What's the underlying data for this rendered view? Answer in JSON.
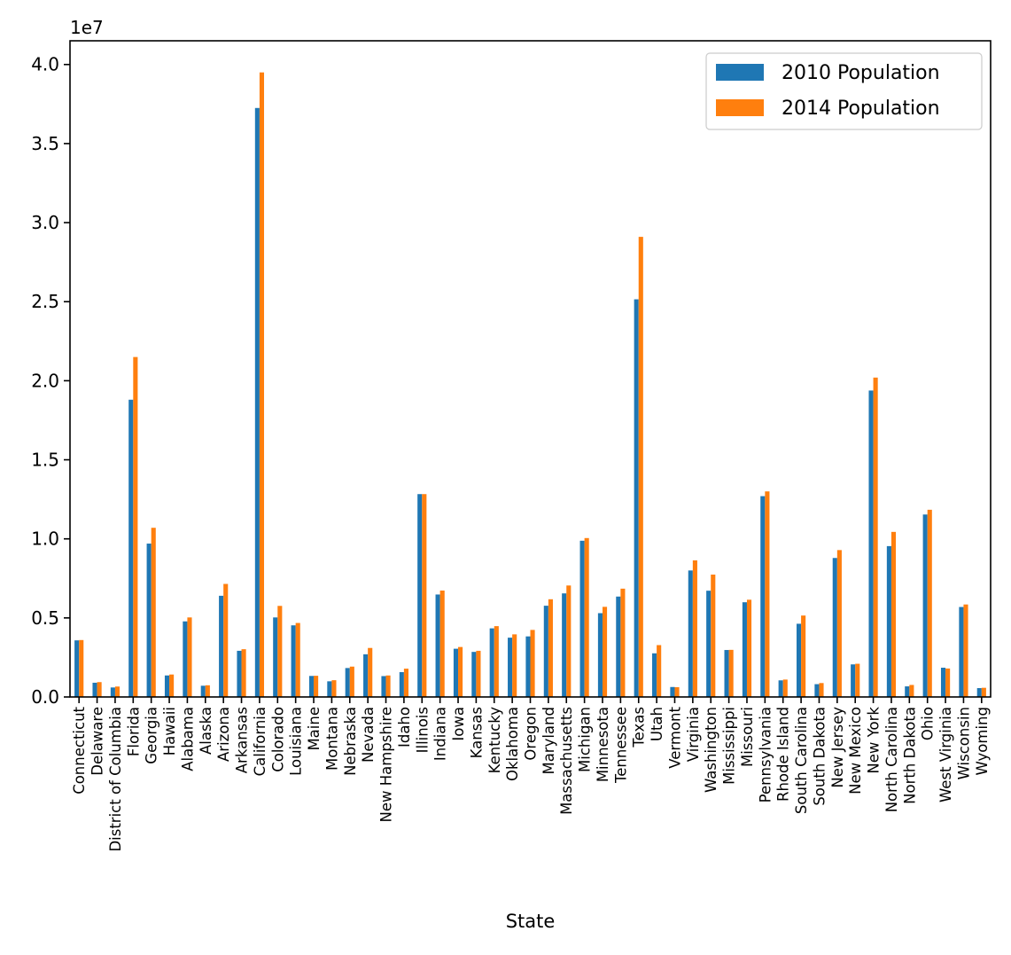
{
  "chart_data": {
    "type": "bar",
    "title": "",
    "xlabel": "State",
    "ylabel": "",
    "offset_label": "1e7",
    "ylim": [
      0,
      41500000.0
    ],
    "yticks": [
      0,
      5000000,
      10000000,
      15000000,
      20000000,
      25000000,
      30000000,
      35000000,
      40000000
    ],
    "ytick_labels": [
      "0.0",
      "0.5",
      "1.0",
      "1.5",
      "2.0",
      "2.5",
      "3.0",
      "3.5",
      "4.0"
    ],
    "grid": false,
    "legend_position": "top-right",
    "categories": [
      "Connecticut",
      "Delaware",
      "District of Columbia",
      "Florida",
      "Georgia",
      "Hawaii",
      "Alabama",
      "Alaska",
      "Arizona",
      "Arkansas",
      "California",
      "Colorado",
      "Louisiana",
      "Maine",
      "Montana",
      "Nebraska",
      "Nevada",
      "New Hampshire",
      "Idaho",
      "Illinois",
      "Indiana",
      "Iowa",
      "Kansas",
      "Kentucky",
      "Oklahoma",
      "Oregon",
      "Maryland",
      "Massachusetts",
      "Michigan",
      "Minnesota",
      "Tennessee",
      "Texas",
      "Utah",
      "Vermont",
      "Virginia",
      "Washington",
      "Mississippi",
      "Missouri",
      "Pennsylvania",
      "Rhode Island",
      "South Carolina",
      "South Dakota",
      "New Jersey",
      "New Mexico",
      "New York",
      "North Carolina",
      "North Dakota",
      "Ohio",
      "West Virginia",
      "Wisconsin",
      "Wyoming"
    ],
    "series": [
      {
        "name": "2010 Population",
        "color": "#1f77b4",
        "values": [
          3580000,
          900000,
          600000,
          18800000,
          9700000,
          1360000,
          4780000,
          710000,
          6400000,
          2920000,
          37250000,
          5030000,
          4530000,
          1330000,
          990000,
          1830000,
          2700000,
          1320000,
          1570000,
          12830000,
          6480000,
          3050000,
          2850000,
          4340000,
          3750000,
          3830000,
          5770000,
          6550000,
          9880000,
          5300000,
          6350000,
          25150000,
          2760000,
          630000,
          8000000,
          6720000,
          2970000,
          5990000,
          12700000,
          1050000,
          4630000,
          810000,
          8790000,
          2060000,
          19380000,
          9540000,
          670000,
          11540000,
          1850000,
          5690000,
          560000
        ]
      },
      {
        "name": "2014 Population",
        "color": "#ff7f0e",
        "values": [
          3600000,
          940000,
          660000,
          21500000,
          10700000,
          1420000,
          5030000,
          740000,
          7150000,
          3020000,
          39500000,
          5760000,
          4680000,
          1340000,
          1060000,
          1920000,
          3100000,
          1360000,
          1790000,
          12830000,
          6730000,
          3160000,
          2920000,
          4480000,
          3960000,
          4240000,
          6180000,
          7050000,
          10050000,
          5700000,
          6850000,
          29100000,
          3280000,
          620000,
          8640000,
          7740000,
          2980000,
          6150000,
          13000000,
          1100000,
          5150000,
          880000,
          9290000,
          2100000,
          20200000,
          10440000,
          760000,
          11840000,
          1800000,
          5850000,
          580000
        ]
      }
    ]
  }
}
